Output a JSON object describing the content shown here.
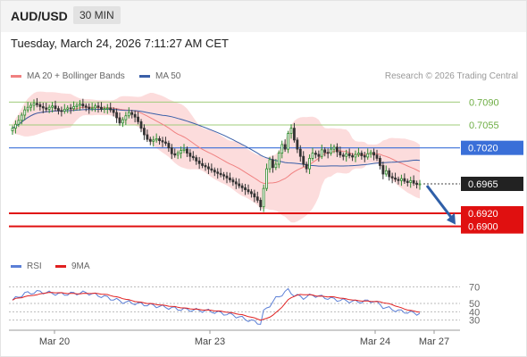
{
  "header": {
    "symbol": "AUD/USD",
    "timeframe": "30 MIN"
  },
  "datetime": "Tuesday, March 24, 2026 7:11:27 AM CET",
  "legend": {
    "ma20": "MA 20 + Bollinger Bands",
    "ma50": "MA 50",
    "ma20_color": "#f08080",
    "ma50_color": "#3a5fa8",
    "credit": "Research © 2026 Trading Central"
  },
  "rsi_legend": {
    "rsi": "RSI",
    "ma": "9MA",
    "rsi_color": "#5b7fd6",
    "ma_color": "#e02020"
  },
  "chart_data": [
    {
      "type": "candlestick",
      "title": "AUD/USD 30 MIN",
      "ylim": [
        0.6875,
        0.7115
      ],
      "x_ticks": [
        "Mar 20",
        "Mar 23",
        "Mar 24",
        "Mar 27"
      ],
      "levels": [
        {
          "value": 0.709,
          "label": "0.7090",
          "kind": "resistance",
          "color": "#9fcc7a"
        },
        {
          "value": 0.7055,
          "label": "0.7055",
          "kind": "resistance",
          "color": "#9fcc7a"
        },
        {
          "value": 0.702,
          "label": "0.7020",
          "kind": "pivot",
          "color": "#3a6fd8"
        },
        {
          "value": 0.6965,
          "label": "0.6965",
          "kind": "last",
          "color": "#222222"
        },
        {
          "value": 0.692,
          "label": "0.6920",
          "kind": "support",
          "color": "#e01010"
        },
        {
          "value": 0.69,
          "label": "0.6900",
          "kind": "support",
          "color": "#e01010"
        }
      ],
      "close": [
        0.705,
        0.7056,
        0.7062,
        0.707,
        0.7078,
        0.7082,
        0.7085,
        0.7088,
        0.7086,
        0.7083,
        0.7081,
        0.7079,
        0.7082,
        0.7084,
        0.708,
        0.7077,
        0.7076,
        0.7079,
        0.7081,
        0.708,
        0.7083,
        0.7085,
        0.7087,
        0.7084,
        0.7082,
        0.708,
        0.7081,
        0.7084,
        0.7082,
        0.7079,
        0.708,
        0.7081,
        0.7078,
        0.7074,
        0.7066,
        0.7058,
        0.7063,
        0.7069,
        0.7074,
        0.7071,
        0.7067,
        0.706,
        0.705,
        0.704,
        0.7033,
        0.703,
        0.7032,
        0.7034,
        0.7031,
        0.7029,
        0.7027,
        0.702,
        0.7011,
        0.7009,
        0.7012,
        0.7016,
        0.7018,
        0.7012,
        0.7007,
        0.7005,
        0.7,
        0.6996,
        0.6993,
        0.6991,
        0.6988,
        0.6986,
        0.6983,
        0.6981,
        0.6979,
        0.6977,
        0.6974,
        0.6971,
        0.6968,
        0.6965,
        0.6962,
        0.6959,
        0.6956,
        0.6953,
        0.695,
        0.6945,
        0.694,
        0.693,
        0.6958,
        0.6988,
        0.7002,
        0.699,
        0.6995,
        0.7012,
        0.7025,
        0.7018,
        0.7042,
        0.705,
        0.7032,
        0.7018,
        0.7007,
        0.6995,
        0.6988,
        0.7004,
        0.7012,
        0.701,
        0.7007,
        0.7017,
        0.7013,
        0.7012,
        0.7018,
        0.7021,
        0.7014,
        0.7009,
        0.7007,
        0.7011,
        0.7008,
        0.7006,
        0.701,
        0.7012,
        0.7008,
        0.7006,
        0.7011,
        0.7013,
        0.7009,
        0.7004,
        0.6993,
        0.698,
        0.6985,
        0.6976,
        0.6974,
        0.6972,
        0.697,
        0.6973,
        0.6969,
        0.6967,
        0.697,
        0.6966,
        0.6964,
        0.6965
      ],
      "series": [
        {
          "name": "MA 20 + Bollinger Bands"
        },
        {
          "name": "MA 50"
        }
      ],
      "forecast_arrow": {
        "from": 0.6965,
        "to": 0.69
      }
    },
    {
      "type": "line",
      "title": "RSI",
      "ylim": [
        20,
        80
      ],
      "y_ticks": [
        70,
        50,
        40,
        30
      ],
      "series": [
        {
          "name": "RSI"
        },
        {
          "name": "9MA"
        }
      ],
      "rsi_profile": [
        [
          0,
          54
        ],
        [
          4,
          62
        ],
        [
          9,
          64
        ],
        [
          16,
          61
        ],
        [
          24,
          63
        ],
        [
          30,
          58
        ],
        [
          36,
          52
        ],
        [
          45,
          48
        ],
        [
          55,
          43
        ],
        [
          64,
          41
        ],
        [
          72,
          36
        ],
        [
          78,
          29
        ],
        [
          81,
          26
        ],
        [
          82,
          40
        ],
        [
          86,
          56
        ],
        [
          90,
          66
        ],
        [
          92,
          60
        ],
        [
          95,
          57
        ],
        [
          98,
          60
        ],
        [
          105,
          55
        ],
        [
          112,
          52
        ],
        [
          118,
          53
        ],
        [
          121,
          46
        ],
        [
          126,
          41
        ],
        [
          132,
          38
        ],
        [
          136,
          40
        ]
      ]
    }
  ]
}
